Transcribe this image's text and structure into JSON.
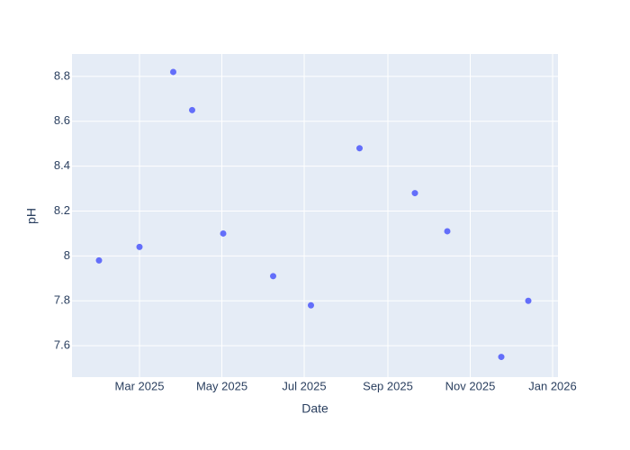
{
  "chart_data": {
    "type": "scatter",
    "x_label": "Date",
    "y_label": "pH",
    "x": [
      "2025-01-30",
      "2025-03-01",
      "2025-03-26",
      "2025-04-09",
      "2025-05-02",
      "2025-06-08",
      "2025-07-06",
      "2025-08-11",
      "2025-09-21",
      "2025-10-15",
      "2025-11-24",
      "2025-12-14"
    ],
    "values": [
      7.98,
      8.04,
      8.82,
      8.65,
      8.1,
      7.91,
      7.78,
      8.48,
      8.28,
      8.11,
      7.55,
      7.8
    ],
    "color": "#636efa",
    "xlim": [
      "2025-01-10",
      "2026-01-05"
    ],
    "xticks": [
      {
        "value": "2025-03-01",
        "label": "Mar 2025"
      },
      {
        "value": "2025-05-01",
        "label": "May 2025"
      },
      {
        "value": "2025-07-01",
        "label": "Jul 2025"
      },
      {
        "value": "2025-09-01",
        "label": "Sep 2025"
      },
      {
        "value": "2025-11-01",
        "label": "Nov 2025"
      },
      {
        "value": "2026-01-01",
        "label": "Jan 2026"
      }
    ],
    "ylim": [
      7.46,
      8.9
    ],
    "yticks": [
      7.6,
      7.8,
      8,
      8.2,
      8.4,
      8.6,
      8.8
    ],
    "grid": true
  }
}
